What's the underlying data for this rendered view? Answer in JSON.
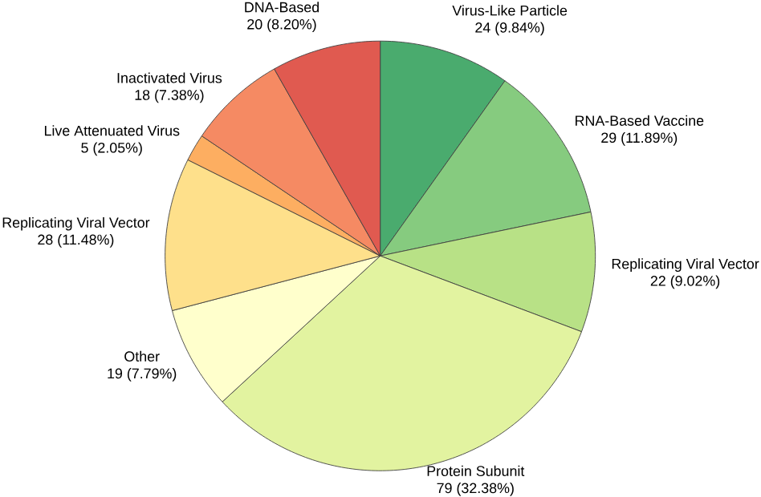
{
  "chart_data": {
    "type": "pie",
    "categories": [
      "Virus-Like Particle",
      "RNA-Based Vaccine",
      "Replicating Viral Vector",
      "Protein Subunit",
      "Other",
      "Replicating Viral Vector",
      "Live Attenuated Virus",
      "Inactivated Virus",
      "DNA-Based"
    ],
    "values": [
      24,
      29,
      22,
      79,
      19,
      28,
      5,
      18,
      20
    ],
    "value_labels": [
      "24 (9.84%)",
      "29 (11.89%)",
      "22 (9.02%)",
      "79 (32.38%)",
      "19 (7.79%)",
      "28 (11.48%)",
      "5 (2.05%)",
      "18 (7.38%)",
      "20 (8.20%)"
    ],
    "colors": [
      "#4aab6e",
      "#86cb7f",
      "#b8e186",
      "#e2f3a0",
      "#ffffcc",
      "#fee08b",
      "#fdae61",
      "#f58a63",
      "#e05a50"
    ]
  }
}
